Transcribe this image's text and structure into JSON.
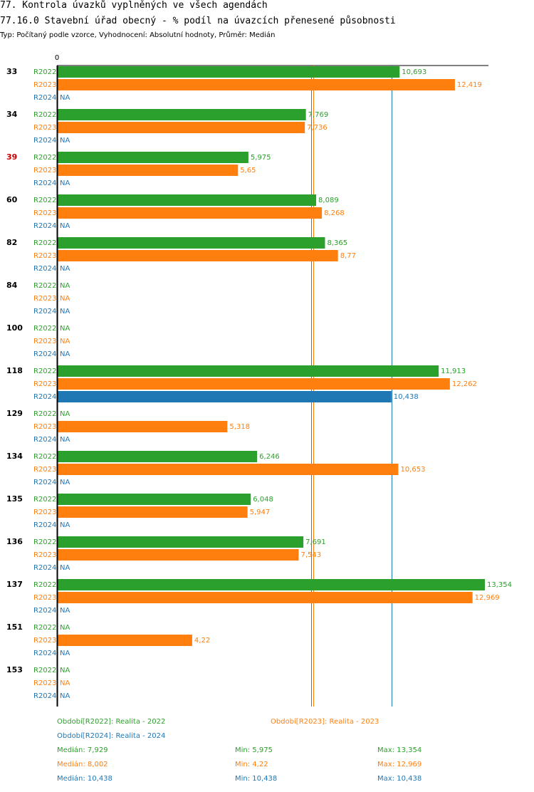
{
  "header": {
    "title": "77. Kontrola úvazků vyplněných ve všech agendách",
    "subtitle": "77.16.0 Stavební úřad obecný - % podíl na úvazcích přenesené působnosti",
    "info": "Typ: Počítaný podle vzorce, Vyhodnocení: Absolutní hodnoty, Průměr: Medián"
  },
  "chart_data": {
    "type": "bar",
    "orientation": "horizontal",
    "xlim": [
      0,
      13.354
    ],
    "zero_label": "0",
    "na_label": "NA",
    "series": [
      {
        "name": "R2022",
        "color": "#2ca02c"
      },
      {
        "name": "R2023",
        "color": "#ff7f0e"
      },
      {
        "name": "R2024",
        "color": "#1f77b4"
      }
    ],
    "categories": [
      {
        "label": "33",
        "highlight": false,
        "values": [
          10.693,
          12.419,
          null
        ],
        "labels": [
          "10,693",
          "12,419",
          "NA"
        ]
      },
      {
        "label": "34",
        "highlight": false,
        "values": [
          7.769,
          7.736,
          null
        ],
        "labels": [
          "7,769",
          "7,736",
          "NA"
        ]
      },
      {
        "label": "39",
        "highlight": true,
        "values": [
          5.975,
          5.65,
          null
        ],
        "labels": [
          "5,975",
          "5,65",
          "NA"
        ]
      },
      {
        "label": "60",
        "highlight": false,
        "values": [
          8.089,
          8.268,
          null
        ],
        "labels": [
          "8,089",
          "8,268",
          "NA"
        ]
      },
      {
        "label": "82",
        "highlight": false,
        "values": [
          8.365,
          8.77,
          null
        ],
        "labels": [
          "8,365",
          "8,77",
          "NA"
        ]
      },
      {
        "label": "84",
        "highlight": false,
        "values": [
          null,
          null,
          null
        ],
        "labels": [
          "NA",
          "NA",
          "NA"
        ]
      },
      {
        "label": "100",
        "highlight": false,
        "values": [
          null,
          null,
          null
        ],
        "labels": [
          "NA",
          "NA",
          "NA"
        ]
      },
      {
        "label": "118",
        "highlight": false,
        "values": [
          11.913,
          12.262,
          10.438
        ],
        "labels": [
          "11,913",
          "12,262",
          "10,438"
        ]
      },
      {
        "label": "129",
        "highlight": false,
        "values": [
          null,
          5.318,
          null
        ],
        "labels": [
          "NA",
          "5,318",
          "NA"
        ]
      },
      {
        "label": "134",
        "highlight": false,
        "values": [
          6.246,
          10.653,
          null
        ],
        "labels": [
          "6,246",
          "10,653",
          "NA"
        ]
      },
      {
        "label": "135",
        "highlight": false,
        "values": [
          6.048,
          5.947,
          null
        ],
        "labels": [
          "6,048",
          "5,947",
          "NA"
        ]
      },
      {
        "label": "136",
        "highlight": false,
        "values": [
          7.691,
          7.543,
          null
        ],
        "labels": [
          "7,691",
          "7,543",
          "NA"
        ]
      },
      {
        "label": "137",
        "highlight": false,
        "values": [
          13.354,
          12.969,
          null
        ],
        "labels": [
          "13,354",
          "12,969",
          "NA"
        ]
      },
      {
        "label": "151",
        "highlight": false,
        "values": [
          null,
          4.22,
          null
        ],
        "labels": [
          "NA",
          "4,22",
          "NA"
        ]
      },
      {
        "label": "153",
        "highlight": false,
        "values": [
          null,
          null,
          null
        ],
        "labels": [
          "NA",
          "NA",
          "NA"
        ]
      }
    ],
    "reference_lines": [
      {
        "series": "R2022",
        "stat": "median",
        "value": 7.929
      },
      {
        "series": "R2023",
        "stat": "median",
        "value": 8.002
      },
      {
        "series": "R2024",
        "stat": "median",
        "value": 10.438
      }
    ]
  },
  "footer": {
    "legend": {
      "r2022": "Období[R2022]: Realita - 2022",
      "r2023": "Období[R2023]: Realita - 2023",
      "r2024": "Období[R2024]: Realita - 2024"
    },
    "stats": {
      "r2022": {
        "median": "Medián: 7,929",
        "min": "Min: 5,975",
        "max": "Max: 13,354"
      },
      "r2023": {
        "median": "Medián: 8,002",
        "min": "Min: 4,22",
        "max": "Max: 12,969"
      },
      "r2024": {
        "median": "Medián: 10,438",
        "min": "Min: 10,438",
        "max": "Max: 10,438"
      }
    }
  },
  "colors": {
    "r2022": "#2ca02c",
    "r2023": "#ff7f0e",
    "r2024": "#1f77b4",
    "highlight": "#cc0000",
    "text": "#000000"
  }
}
